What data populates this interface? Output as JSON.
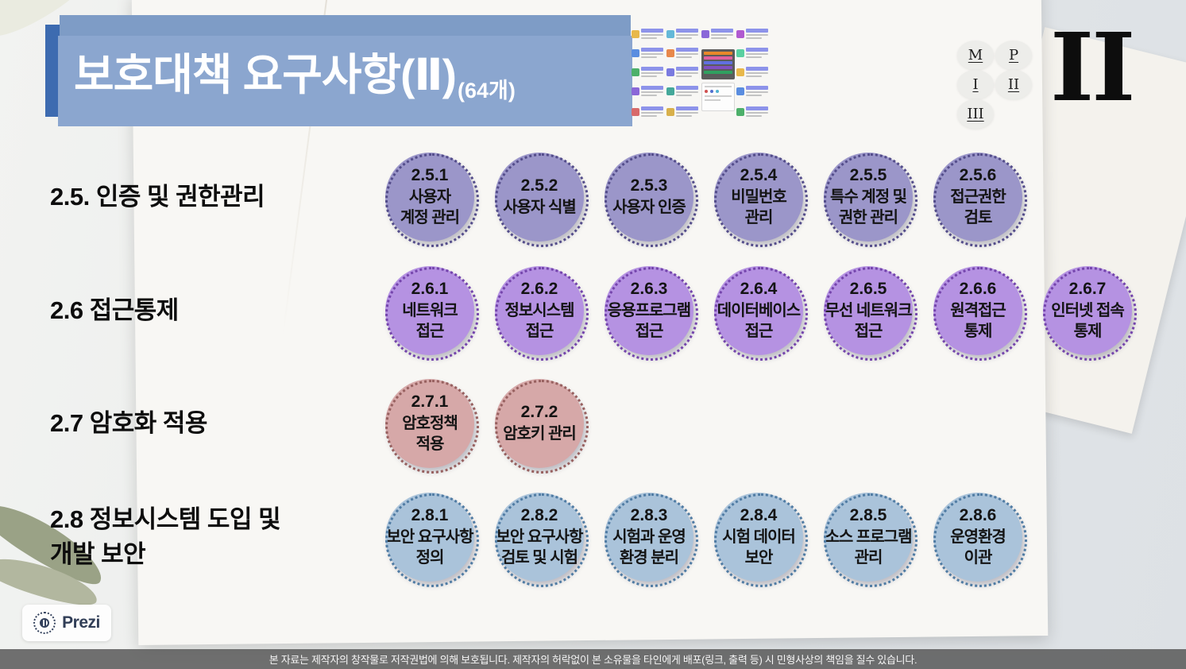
{
  "title": {
    "main": "보호대책 요구사항(Ⅱ)",
    "count": "(64개)"
  },
  "nav": {
    "buttons": [
      "M",
      "P",
      "I",
      "II",
      "III"
    ]
  },
  "page_numeral": "II",
  "accent_color": "#3d6bb0",
  "sections": [
    {
      "label": "2.5. 인증 및 권한관리",
      "fill": "#9b96c9",
      "dot": "#534c8a",
      "items": [
        {
          "num": "2.5.1",
          "name": "사용자\n계정 관리"
        },
        {
          "num": "2.5.2",
          "name": "사용자 식별"
        },
        {
          "num": "2.5.3",
          "name": "사용자 인증"
        },
        {
          "num": "2.5.4",
          "name": "비밀번호\n관리"
        },
        {
          "num": "2.5.5",
          "name": "특수 계정 및\n권한 관리"
        },
        {
          "num": "2.5.6",
          "name": "접근권한\n검토"
        }
      ]
    },
    {
      "label": "2.6  접근통제",
      "fill": "#b592e2",
      "dot": "#7444ac",
      "items": [
        {
          "num": "2.6.1",
          "name": "네트워크\n접근"
        },
        {
          "num": "2.6.2",
          "name": "정보시스템\n접근"
        },
        {
          "num": "2.6.3",
          "name": "응용프로그램\n접근"
        },
        {
          "num": "2.6.4",
          "name": "데이터베이스\n접근"
        },
        {
          "num": "2.6.5",
          "name": "무선 네트워크\n접근"
        },
        {
          "num": "2.6.6",
          "name": "원격접근\n통제"
        },
        {
          "num": "2.6.7",
          "name": "인터넷 접속\n통제"
        }
      ]
    },
    {
      "label": "2.7  암호화 적용",
      "fill": "#d6a8a8",
      "dot": "#97605f",
      "items": [
        {
          "num": "2.7.1",
          "name": "암호정책\n적용"
        },
        {
          "num": "2.7.2",
          "name": "암호키 관리"
        }
      ]
    },
    {
      "label": "2.8  정보시스템 도입 및 개발 보안",
      "fill": "#aac3da",
      "dot": "#4f7ba3",
      "items": [
        {
          "num": "2.8.1",
          "name": "보안 요구사항\n정의"
        },
        {
          "num": "2.8.2",
          "name": "보안 요구사항\n검토 및 시험"
        },
        {
          "num": "2.8.3",
          "name": "시험과 운영\n환경 분리"
        },
        {
          "num": "2.8.4",
          "name": "시험 데이터\n보안"
        },
        {
          "num": "2.8.5",
          "name": "소스 프로그램\n관리"
        },
        {
          "num": "2.8.6",
          "name": "운영환경\n이관"
        }
      ]
    }
  ],
  "logo": {
    "text": "Prezi"
  },
  "footer": {
    "text": "본 자료는 제작자의 창작물로 저작권법에 의해 보호됩니다. 제작자의 허락없이 본 소유물을 타인에게 배포(링크, 출력 등) 시 민형사상의 책임을 질수 있습니다."
  }
}
